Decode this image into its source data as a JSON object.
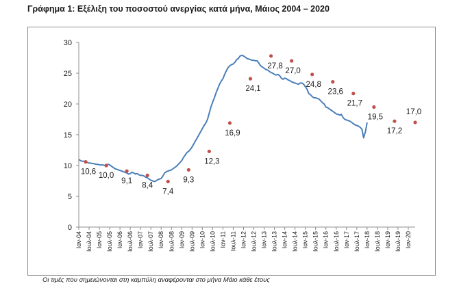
{
  "title": "Γράφημα 1: Εξέλιξη του ποσοστού ανεργίας κατά μήνα, Μάιος 2004 – 2020",
  "note": "Οι τιμές που σημειώνονται στη καμπύλη αναφέρονται στο μήνα Μάιο κάθε έτους",
  "colors": {
    "line": "#4a7ebb",
    "marker": "#c0504d",
    "axis": "#8c8c8c",
    "text": "#1a1a1a"
  },
  "chart_data": {
    "type": "line",
    "title": "Γράφημα 1: Εξέλιξη του ποσοστού ανεργίας κατά μήνα, Μάιος 2004 – 2020",
    "xlabel": "",
    "ylabel": "",
    "ylim": [
      0,
      30
    ],
    "yticks": [
      "0",
      "5",
      "10",
      "15",
      "20",
      "25",
      "30"
    ],
    "xticks": [
      "Ιαν-04",
      "Ιουλ-04",
      "Ιαν-05",
      "Ιουλ-05",
      "Ιαν-06",
      "Ιουλ-06",
      "Ιαν-07",
      "Ιουλ-07",
      "Ιαν-08",
      "Ιουλ-08",
      "Ιαν-09",
      "Ιουλ-09",
      "Ιαν-10",
      "Ιουλ-10",
      "Ιαν-11",
      "Ιουλ-11",
      "Ιαν-12",
      "Ιουλ-12",
      "Ιαν-13",
      "Ιουλ-13",
      "Ιαν-14",
      "Ιουλ-14",
      "Ιαν-15",
      "Ιουλ-15",
      "Ιαν-16",
      "Ιουλ-16",
      "Ιαν-17",
      "Ιουλ-17",
      "Ιαν-18",
      "Ιουλ-18",
      "Ιαν-19",
      "Ιουλ-19",
      "Ιαν-20"
    ],
    "grid": false,
    "legend": "none",
    "series": [
      {
        "values": [
          [
            0,
            11.0
          ],
          [
            1,
            10.8
          ],
          [
            2,
            10.7
          ],
          [
            3,
            10.7
          ],
          [
            4,
            10.6
          ],
          [
            5,
            10.5
          ],
          [
            6,
            10.4
          ],
          [
            7,
            10.4
          ],
          [
            8,
            10.3
          ],
          [
            9,
            10.3
          ],
          [
            10,
            10.2
          ],
          [
            11,
            10.2
          ],
          [
            12,
            10.1
          ],
          [
            13,
            10.1
          ],
          [
            14,
            10.1
          ],
          [
            15,
            10.0
          ],
          [
            16,
            10.1
          ],
          [
            17,
            10.2
          ],
          [
            18,
            10.1
          ],
          [
            19,
            9.9
          ],
          [
            20,
            9.7
          ],
          [
            21,
            9.5
          ],
          [
            22,
            9.4
          ],
          [
            23,
            9.3
          ],
          [
            24,
            9.2
          ],
          [
            25,
            9.1
          ],
          [
            26,
            9.0
          ],
          [
            27,
            8.9
          ],
          [
            28,
            8.8
          ],
          [
            29,
            8.6
          ],
          [
            30,
            8.7
          ],
          [
            31,
            8.9
          ],
          [
            32,
            8.8
          ],
          [
            33,
            8.6
          ],
          [
            34,
            8.7
          ],
          [
            35,
            8.5
          ],
          [
            36,
            8.4
          ],
          [
            37,
            8.4
          ],
          [
            38,
            8.3
          ],
          [
            39,
            8.1
          ],
          [
            40,
            8.0
          ],
          [
            41,
            7.8
          ],
          [
            42,
            7.6
          ],
          [
            43,
            7.5
          ],
          [
            44,
            7.4
          ],
          [
            45,
            7.5
          ],
          [
            46,
            7.7
          ],
          [
            47,
            7.8
          ],
          [
            48,
            7.9
          ],
          [
            49,
            8.3
          ],
          [
            50,
            8.8
          ],
          [
            51,
            9.0
          ],
          [
            52,
            9.1
          ],
          [
            53,
            9.2
          ],
          [
            54,
            9.3
          ],
          [
            55,
            9.5
          ],
          [
            56,
            9.7
          ],
          [
            57,
            9.9
          ],
          [
            58,
            10.2
          ],
          [
            59,
            10.5
          ],
          [
            60,
            10.8
          ],
          [
            61,
            11.3
          ],
          [
            62,
            11.7
          ],
          [
            63,
            12.1
          ],
          [
            64,
            12.3
          ],
          [
            65,
            12.6
          ],
          [
            66,
            13.0
          ],
          [
            67,
            13.5
          ],
          [
            68,
            14.0
          ],
          [
            69,
            14.5
          ],
          [
            70,
            15.0
          ],
          [
            71,
            15.5
          ],
          [
            72,
            16.0
          ],
          [
            73,
            16.5
          ],
          [
            74,
            16.9
          ],
          [
            75,
            17.5
          ],
          [
            76,
            18.5
          ],
          [
            77,
            19.5
          ],
          [
            78,
            20.3
          ],
          [
            79,
            21.0
          ],
          [
            80,
            21.8
          ],
          [
            81,
            22.5
          ],
          [
            82,
            23.2
          ],
          [
            83,
            23.7
          ],
          [
            84,
            24.1
          ],
          [
            85,
            24.8
          ],
          [
            86,
            25.4
          ],
          [
            87,
            25.9
          ],
          [
            88,
            26.2
          ],
          [
            89,
            26.4
          ],
          [
            90,
            26.5
          ],
          [
            91,
            26.8
          ],
          [
            92,
            27.2
          ],
          [
            93,
            27.4
          ],
          [
            94,
            27.8
          ],
          [
            95,
            27.9
          ],
          [
            96,
            27.8
          ],
          [
            97,
            27.6
          ],
          [
            98,
            27.4
          ],
          [
            99,
            27.3
          ],
          [
            100,
            27.2
          ],
          [
            101,
            27.1
          ],
          [
            102,
            27.1
          ],
          [
            103,
            27.0
          ],
          [
            104,
            27.0
          ],
          [
            105,
            26.6
          ],
          [
            106,
            26.2
          ],
          [
            107,
            26.0
          ],
          [
            108,
            25.8
          ],
          [
            109,
            25.6
          ],
          [
            110,
            25.5
          ],
          [
            111,
            25.3
          ],
          [
            112,
            25.1
          ],
          [
            113,
            25.0
          ],
          [
            114,
            24.8
          ],
          [
            115,
            24.7
          ],
          [
            116,
            24.8
          ],
          [
            117,
            24.6
          ],
          [
            118,
            24.2
          ],
          [
            119,
            24.0
          ],
          [
            120,
            24.2
          ],
          [
            121,
            24.1
          ],
          [
            122,
            23.9
          ],
          [
            123,
            23.8
          ],
          [
            124,
            23.6
          ],
          [
            125,
            23.5
          ],
          [
            126,
            23.4
          ],
          [
            127,
            23.3
          ],
          [
            128,
            23.2
          ],
          [
            129,
            23.4
          ],
          [
            130,
            23.4
          ],
          [
            131,
            23.2
          ],
          [
            132,
            22.8
          ],
          [
            133,
            22.4
          ],
          [
            134,
            21.7
          ],
          [
            135,
            21.5
          ],
          [
            136,
            21.2
          ],
          [
            137,
            21.0
          ],
          [
            138,
            21.0
          ],
          [
            139,
            20.9
          ],
          [
            140,
            20.8
          ],
          [
            141,
            20.5
          ],
          [
            142,
            20.2
          ],
          [
            143,
            20.0
          ],
          [
            144,
            19.5
          ],
          [
            145,
            19.4
          ],
          [
            146,
            19.2
          ],
          [
            147,
            19.0
          ],
          [
            148,
            18.8
          ],
          [
            149,
            18.6
          ],
          [
            150,
            18.4
          ],
          [
            151,
            18.3
          ],
          [
            152,
            18.2
          ],
          [
            153,
            18.3
          ],
          [
            154,
            17.8
          ],
          [
            155,
            17.5
          ],
          [
            156,
            17.4
          ],
          [
            157,
            17.3
          ],
          [
            158,
            17.2
          ],
          [
            159,
            17.0
          ],
          [
            160,
            16.8
          ],
          [
            161,
            16.6
          ],
          [
            162,
            16.5
          ],
          [
            163,
            16.4
          ],
          [
            164,
            16.2
          ],
          [
            165,
            15.9
          ],
          [
            166,
            14.5
          ],
          [
            167,
            15.5
          ],
          [
            168,
            17.0
          ]
        ]
      }
    ],
    "annotations": [
      {
        "x": 4,
        "y": 10.6,
        "label": "10,6"
      },
      {
        "x": 16,
        "y": 10.0,
        "label": "10,0"
      },
      {
        "x": 28,
        "y": 9.1,
        "label": "9,1"
      },
      {
        "x": 40,
        "y": 8.4,
        "label": "8,4"
      },
      {
        "x": 52,
        "y": 7.4,
        "label": "7,4"
      },
      {
        "x": 64,
        "y": 9.3,
        "label": "9,3"
      },
      {
        "x": 76,
        "y": 12.3,
        "label": "12,3"
      },
      {
        "x": 88,
        "y": 16.9,
        "label": "16,9"
      },
      {
        "x": 100,
        "y": 24.1,
        "label": "24,1"
      },
      {
        "x": 112,
        "y": 27.8,
        "label": "27,8"
      },
      {
        "x": 124,
        "y": 27.0,
        "label": "27,0"
      },
      {
        "x": 136,
        "y": 24.8,
        "label": "24,8"
      },
      {
        "x": 148,
        "y": 23.6,
        "label": "23,6"
      },
      {
        "x": 160,
        "y": 21.7,
        "label": "21,7"
      },
      {
        "x": 172,
        "y": 19.5,
        "label": "19,5"
      },
      {
        "x": 184,
        "y": 17.2,
        "label": "17,2"
      },
      {
        "x": 196,
        "y": 17.0,
        "label": "17,0"
      }
    ]
  }
}
